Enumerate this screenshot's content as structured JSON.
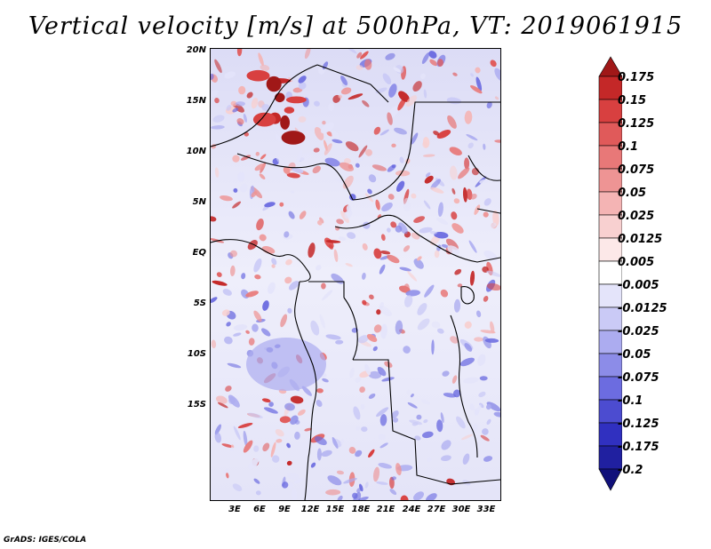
{
  "title": "Vertical velocity [m/s] at 500hPa, VT: 2019061915",
  "credit": "GrADS: IGES/COLA",
  "map": {
    "y_ticks": [
      "20N",
      "15N",
      "10N",
      "5N",
      "EQ",
      "5S",
      "10S",
      "15S"
    ],
    "x_ticks": [
      "3E",
      "6E",
      "9E",
      "12E",
      "15E",
      "18E",
      "21E",
      "24E",
      "27E",
      "30E",
      "33E"
    ]
  },
  "colorbar": {
    "levels": [
      "0.175",
      "0.15",
      "0.125",
      "0.1",
      "0.075",
      "0.05",
      "0.025",
      "0.0125",
      "0.005",
      "-0.005",
      "-0.0125",
      "-0.025",
      "-0.05",
      "-0.075",
      "-0.1",
      "-0.125",
      "-0.175",
      "-0.2"
    ],
    "colors": [
      "#a01818",
      "#c42828",
      "#d84040",
      "#e05a5a",
      "#e87878",
      "#ee9494",
      "#f4b4b4",
      "#f8d0d0",
      "#fce8e8",
      "#ffffff",
      "#e4e4fa",
      "#cacaf6",
      "#acacf0",
      "#8c8ce8",
      "#6c6ce0",
      "#4c4cd0",
      "#3030c0",
      "#2020a0",
      "#10107a"
    ]
  }
}
